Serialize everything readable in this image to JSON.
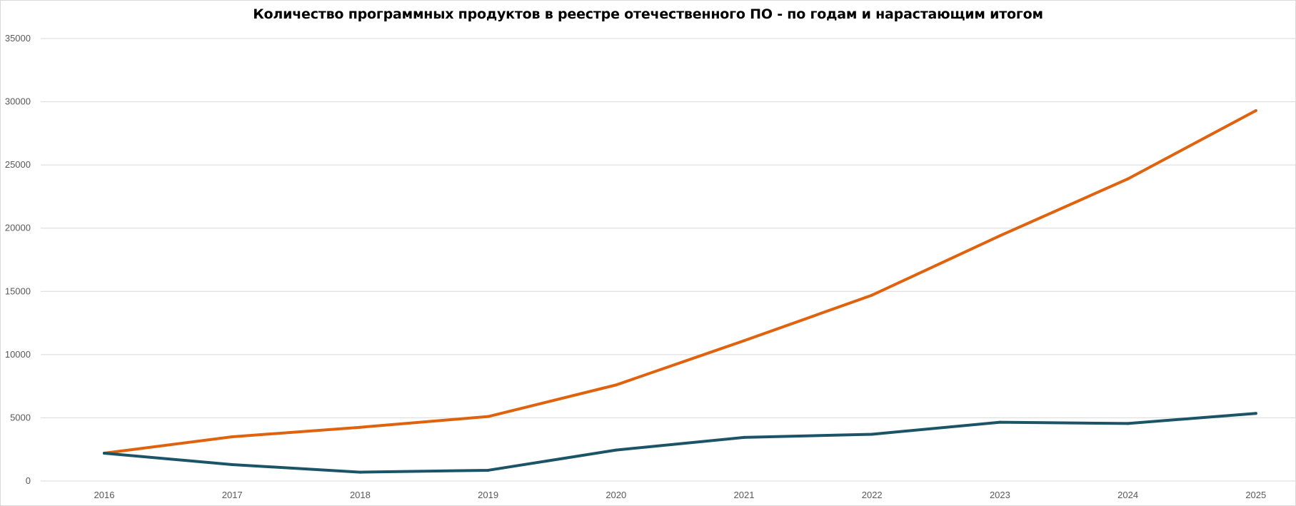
{
  "chart_data": {
    "type": "line",
    "title": "Количество программных продуктов в реестре отечественного ПО - по годам и нарастающим итогом",
    "xlabel": "",
    "ylabel": "",
    "x": [
      "2016",
      "2017",
      "2018",
      "2019",
      "2020",
      "2021",
      "2022",
      "2023",
      "2024",
      "2025"
    ],
    "ylim": [
      0,
      35000
    ],
    "yticks": [
      "0",
      "5000",
      "10000",
      "15000",
      "20000",
      "25000",
      "30000",
      "35000"
    ],
    "grid": true,
    "legend": "none",
    "series": [
      {
        "color": "#E0620D",
        "values": [
          2200,
          3500,
          4250,
          5100,
          7600,
          11100,
          14700,
          19400,
          23900,
          29300
        ]
      },
      {
        "color": "#1B5466",
        "values": [
          2200,
          1300,
          700,
          850,
          2450,
          3450,
          3700,
          4650,
          4550,
          5350
        ]
      }
    ]
  }
}
